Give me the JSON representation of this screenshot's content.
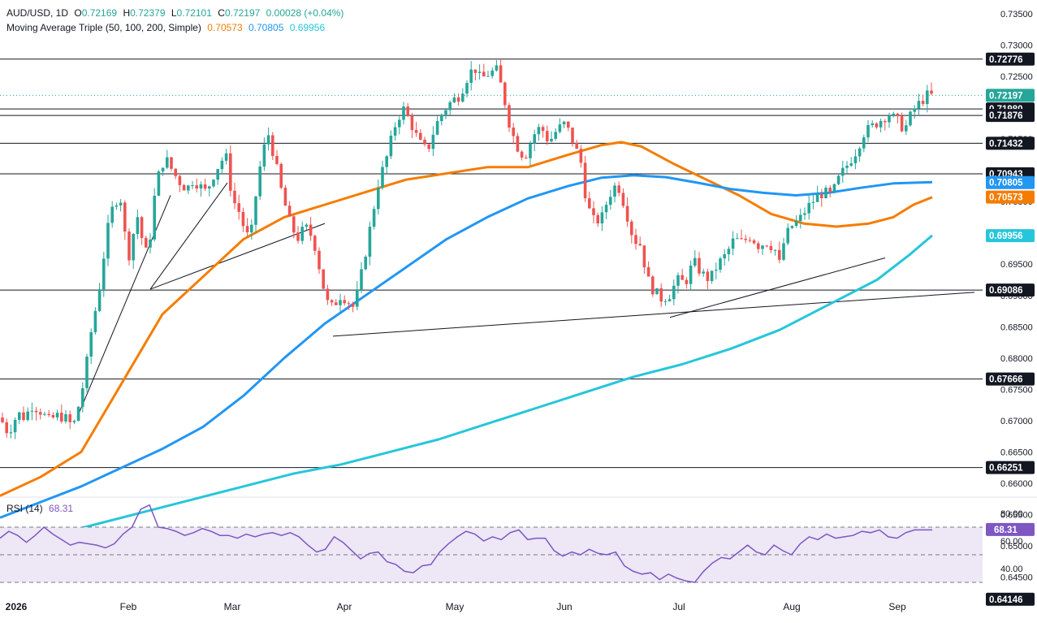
{
  "header": {
    "symbol": "AUD/USD, 1D",
    "o_label": "O",
    "o_value": "0.72169",
    "h_label": "H",
    "h_value": "0.72379",
    "l_label": "L",
    "l_value": "0.72101",
    "c_label": "C",
    "c_value": "0.72197",
    "change": "0.00028 (+0.04%)",
    "ma_label": "Moving Average Triple (50, 100, 200, Simple)",
    "ma_values": [
      "0.70573",
      "0.70805",
      "0.69956"
    ],
    "rsi_label": "RSI (14)",
    "rsi_value": "68.31"
  },
  "colors": {
    "up": "#26a69a",
    "down": "#ef5350",
    "ma50": "#f57c00",
    "ma100": "#2196f3",
    "ma200": "#26c6da",
    "rsi": "#7e57c2",
    "rsi_band": "#ede7f6",
    "text": "#131722"
  },
  "chart_data": [
    {
      "type": "candlestick",
      "title": "AUD/USD, 1D",
      "x_labels": [
        "2026",
        "Feb",
        "Mar",
        "Apr",
        "May",
        "Jun",
        "Jul",
        "Aug",
        "Sep"
      ],
      "y_ticks": [
        0.735,
        0.73,
        0.725,
        0.72,
        0.715,
        0.71,
        0.705,
        0.7,
        0.695,
        0.69,
        0.685,
        0.68,
        0.675,
        0.67,
        0.665,
        0.66,
        0.655,
        0.65,
        0.645
      ],
      "price_labels": [
        {
          "value": "0.72776",
          "kind": "level"
        },
        {
          "value": "0.72197",
          "kind": "last"
        },
        {
          "value": "0.71980",
          "kind": "level"
        },
        {
          "value": "0.71876",
          "kind": "level"
        },
        {
          "value": "0.71432",
          "kind": "level"
        },
        {
          "value": "0.70943",
          "kind": "level"
        },
        {
          "value": "0.70805",
          "kind": "ma100"
        },
        {
          "value": "0.70573",
          "kind": "ma50"
        },
        {
          "value": "0.69956",
          "kind": "ma200"
        },
        {
          "value": "0.69086",
          "kind": "level"
        },
        {
          "value": "0.67666",
          "kind": "level"
        },
        {
          "value": "0.66251",
          "kind": "level"
        },
        {
          "value": "0.64146",
          "kind": "level"
        }
      ],
      "support_resistance": [
        0.72776,
        0.7198,
        0.71876,
        0.71432,
        0.70943,
        0.69086,
        0.67666,
        0.66251
      ],
      "last_close": 0.72197,
      "path_anchors": [
        [
          0,
          0.6705
        ],
        [
          10,
          0.668
        ],
        [
          22,
          0.6712
        ],
        [
          30,
          0.6705
        ],
        [
          40,
          0.6725
        ],
        [
          50,
          0.6715
        ],
        [
          60,
          0.67
        ],
        [
          70,
          0.6708
        ],
        [
          80,
          0.6705
        ],
        [
          90,
          0.669
        ],
        [
          100,
          0.674
        ],
        [
          106,
          0.6785
        ],
        [
          112,
          0.684
        ],
        [
          118,
          0.688
        ],
        [
          124,
          0.6925
        ],
        [
          130,
          0.6985
        ],
        [
          136,
          0.703
        ],
        [
          142,
          0.705
        ],
        [
          148,
          0.706
        ],
        [
          155,
          0.6985
        ],
        [
          160,
          0.696
        ],
        [
          168,
          0.7035
        ],
        [
          175,
          0.699
        ],
        [
          182,
          0.696
        ],
        [
          190,
          0.7055
        ],
        [
          198,
          0.711
        ],
        [
          206,
          0.7115
        ],
        [
          214,
          0.7095
        ],
        [
          222,
          0.708
        ],
        [
          230,
          0.707
        ],
        [
          238,
          0.7085
        ],
        [
          246,
          0.7075
        ],
        [
          254,
          0.7065
        ],
        [
          262,
          0.709
        ],
        [
          270,
          0.711
        ],
        [
          278,
          0.7125
        ],
        [
          286,
          0.7055
        ],
        [
          294,
          0.7035
        ],
        [
          300,
          0.701
        ],
        [
          308,
          0.6985
        ],
        [
          316,
          0.707
        ],
        [
          322,
          0.712
        ],
        [
          330,
          0.716
        ],
        [
          338,
          0.712
        ],
        [
          346,
          0.707
        ],
        [
          356,
          0.702
        ],
        [
          366,
          0.699
        ],
        [
          376,
          0.701
        ],
        [
          386,
          0.699
        ],
        [
          394,
          0.694
        ],
        [
          402,
          0.689
        ],
        [
          410,
          0.688
        ],
        [
          418,
          0.69
        ],
        [
          426,
          0.6895
        ],
        [
          436,
          0.688
        ],
        [
          446,
          0.694
        ],
        [
          456,
          0.701
        ],
        [
          466,
          0.708
        ],
        [
          476,
          0.712
        ],
        [
          486,
          0.717
        ],
        [
          496,
          0.72
        ],
        [
          506,
          0.7175
        ],
        [
          516,
          0.7145
        ],
        [
          526,
          0.713
        ],
        [
          536,
          0.717
        ],
        [
          546,
          0.7195
        ],
        [
          556,
          0.721
        ],
        [
          566,
          0.722
        ],
        [
          576,
          0.725
        ],
        [
          584,
          0.7265
        ],
        [
          592,
          0.7245
        ],
        [
          602,
          0.7255
        ],
        [
          612,
          0.726
        ],
        [
          620,
          0.722
        ],
        [
          628,
          0.717
        ],
        [
          636,
          0.714
        ],
        [
          646,
          0.712
        ],
        [
          656,
          0.7155
        ],
        [
          666,
          0.717
        ],
        [
          676,
          0.7145
        ],
        [
          686,
          0.7165
        ],
        [
          696,
          0.7175
        ],
        [
          706,
          0.7145
        ],
        [
          716,
          0.711
        ],
        [
          722,
          0.705
        ],
        [
          730,
          0.702
        ],
        [
          740,
          0.702
        ],
        [
          750,
          0.706
        ],
        [
          760,
          0.708
        ],
        [
          770,
          0.704
        ],
        [
          780,
          0.699
        ],
        [
          790,
          0.698
        ],
        [
          796,
          0.693
        ],
        [
          804,
          0.691
        ],
        [
          814,
          0.6895
        ],
        [
          824,
          0.69
        ],
        [
          834,
          0.6925
        ],
        [
          844,
          0.692
        ],
        [
          854,
          0.6955
        ],
        [
          864,
          0.6935
        ],
        [
          874,
          0.6925
        ],
        [
          884,
          0.695
        ],
        [
          894,
          0.6965
        ],
        [
          904,
          0.699
        ],
        [
          914,
          0.6985
        ],
        [
          924,
          0.6995
        ],
        [
          934,
          0.698
        ],
        [
          944,
          0.6985
        ],
        [
          954,
          0.6975
        ],
        [
          960,
          0.695
        ],
        [
          966,
          0.699
        ],
        [
          974,
          0.701
        ],
        [
          984,
          0.702
        ],
        [
          994,
          0.704
        ],
        [
          1004,
          0.7055
        ],
        [
          1014,
          0.7065
        ],
        [
          1024,
          0.706
        ],
        [
          1034,
          0.709
        ],
        [
          1044,
          0.711
        ],
        [
          1054,
          0.713
        ],
        [
          1064,
          0.716
        ],
        [
          1074,
          0.717
        ],
        [
          1084,
          0.718
        ],
        [
          1094,
          0.719
        ],
        [
          1104,
          0.718
        ],
        [
          1114,
          0.7165
        ],
        [
          1124,
          0.7195
        ],
        [
          1134,
          0.721
        ],
        [
          1142,
          0.722
        ],
        [
          1148,
          0.7219
        ]
      ],
      "series": [
        {
          "name": "MA 50",
          "last_value": 0.70573,
          "points": [
            [
              0,
              0.658
            ],
            [
              50,
              0.661
            ],
            [
              100,
              0.665
            ],
            [
              150,
              0.676
            ],
            [
              200,
              0.687
            ],
            [
              250,
              0.693
            ],
            [
              300,
              0.699
            ],
            [
              350,
              0.7025
            ],
            [
              400,
              0.7045
            ],
            [
              450,
              0.7065
            ],
            [
              500,
              0.7085
            ],
            [
              550,
              0.7095
            ],
            [
              600,
              0.7105
            ],
            [
              650,
              0.7105
            ],
            [
              700,
              0.7125
            ],
            [
              740,
              0.714
            ],
            [
              765,
              0.7145
            ],
            [
              790,
              0.7138
            ],
            [
              830,
              0.711
            ],
            [
              870,
              0.7085
            ],
            [
              910,
              0.706
            ],
            [
              950,
              0.703
            ],
            [
              990,
              0.7015
            ],
            [
              1030,
              0.701
            ],
            [
              1070,
              0.7015
            ],
            [
              1100,
              0.7025
            ],
            [
              1125,
              0.7045
            ],
            [
              1148,
              0.7057
            ]
          ]
        },
        {
          "name": "MA 100",
          "last_value": 0.70805,
          "points": [
            [
              0,
              0.6545
            ],
            [
              50,
              0.657
            ],
            [
              100,
              0.6595
            ],
            [
              150,
              0.6625
            ],
            [
              200,
              0.6655
            ],
            [
              250,
              0.669
            ],
            [
              300,
              0.674
            ],
            [
              350,
              0.68
            ],
            [
              400,
              0.6855
            ],
            [
              450,
              0.69
            ],
            [
              500,
              0.6945
            ],
            [
              550,
              0.699
            ],
            [
              600,
              0.7025
            ],
            [
              650,
              0.7055
            ],
            [
              700,
              0.7075
            ],
            [
              740,
              0.7088
            ],
            [
              780,
              0.7092
            ],
            [
              820,
              0.7089
            ],
            [
              860,
              0.708
            ],
            [
              900,
              0.707
            ],
            [
              940,
              0.7064
            ],
            [
              980,
              0.706
            ],
            [
              1020,
              0.7064
            ],
            [
              1060,
              0.7072
            ],
            [
              1100,
              0.7079
            ],
            [
              1148,
              0.7081
            ]
          ]
        },
        {
          "name": "MA 200",
          "last_value": 0.69956,
          "points": [
            [
              0,
              0.65
            ],
            [
              60,
              0.6515
            ],
            [
              120,
              0.6535
            ],
            [
              180,
              0.6555
            ],
            [
              240,
              0.6575
            ],
            [
              300,
              0.6595
            ],
            [
              360,
              0.6615
            ],
            [
              420,
              0.663
            ],
            [
              480,
              0.665
            ],
            [
              540,
              0.667
            ],
            [
              600,
              0.6695
            ],
            [
              660,
              0.672
            ],
            [
              720,
              0.6745
            ],
            [
              780,
              0.677
            ],
            [
              840,
              0.679
            ],
            [
              900,
              0.6815
            ],
            [
              960,
              0.6845
            ],
            [
              1020,
              0.6885
            ],
            [
              1080,
              0.6925
            ],
            [
              1120,
              0.6965
            ],
            [
              1148,
              0.6996
            ]
          ]
        }
      ],
      "trendlines": [
        {
          "from": [
            95,
            0.6705
          ],
          "to": [
            210,
            0.706
          ]
        },
        {
          "from": [
            185,
            0.691
          ],
          "to": [
            280,
            0.708
          ]
        },
        {
          "from": [
            185,
            0.691
          ],
          "to": [
            400,
            0.7015
          ]
        },
        {
          "from": [
            410,
            0.6835
          ],
          "to": [
            1200,
            0.6905
          ]
        },
        {
          "from": [
            825,
            0.6865
          ],
          "to": [
            1090,
            0.696
          ]
        }
      ]
    },
    {
      "type": "line",
      "title": "RSI (14)",
      "y_ticks": [
        80,
        60,
        40
      ],
      "ylim": [
        28,
        90
      ],
      "bands": [
        30,
        50,
        70
      ],
      "last_value": 68.31,
      "values": [
        62,
        67,
        64,
        59,
        64,
        70,
        65,
        61,
        57,
        59,
        58,
        57,
        55,
        58,
        65,
        70,
        83,
        86,
        70,
        69,
        67,
        64,
        66,
        69,
        67,
        64,
        64,
        62,
        65,
        63,
        65,
        66,
        64,
        66,
        63,
        57,
        52,
        54,
        63,
        59,
        53,
        47,
        51,
        52,
        45,
        43,
        38,
        37,
        42,
        43,
        52,
        58,
        63,
        67,
        65,
        60,
        63,
        61,
        66,
        68,
        61,
        62,
        62,
        53,
        49,
        52,
        50,
        54,
        51,
        50,
        52,
        42,
        38,
        36,
        37,
        32,
        36,
        33,
        31,
        30,
        38,
        44,
        48,
        47,
        52,
        57,
        52,
        50,
        57,
        53,
        50,
        58,
        63,
        61,
        65,
        62,
        63,
        64,
        67,
        66,
        68,
        63,
        62,
        66,
        68,
        68,
        68
      ]
    }
  ]
}
